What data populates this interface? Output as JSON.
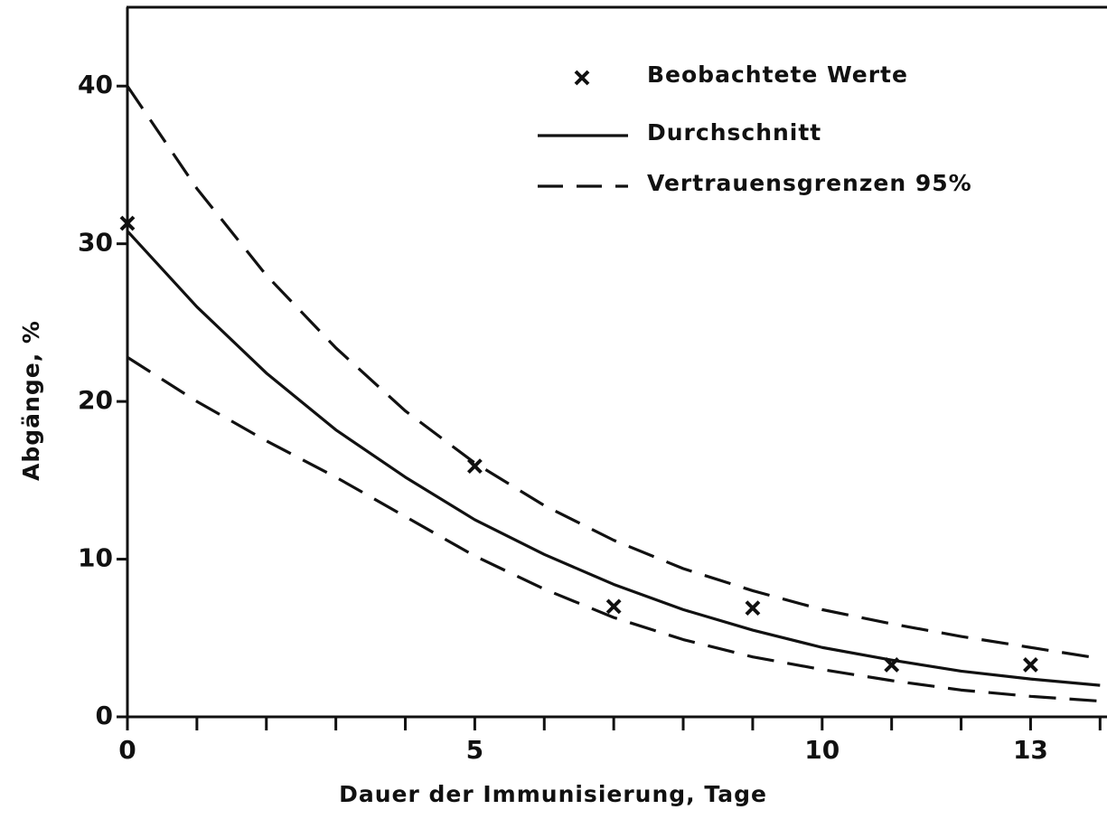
{
  "chart_data": {
    "type": "line",
    "x_label": "Dauer der Immunisierung, Tage",
    "y_label": "Abgänge, %",
    "x": [
      0,
      1,
      2,
      3,
      4,
      5,
      6,
      7,
      8,
      9,
      10,
      11,
      12,
      13,
      14
    ],
    "series": [
      {
        "name": "Beobachtete Werte",
        "style": "marker",
        "color": "#111111",
        "x": [
          0,
          5,
          7,
          9,
          11,
          13
        ],
        "values": [
          31.3,
          15.9,
          7.0,
          6.9,
          3.3,
          3.3
        ]
      },
      {
        "name": "Durchschnitt",
        "style": "solid",
        "color": "#111111",
        "values": [
          30.8,
          26.0,
          21.8,
          18.2,
          15.2,
          12.5,
          10.3,
          8.4,
          6.8,
          5.5,
          4.4,
          3.6,
          2.9,
          2.4,
          2.0
        ]
      },
      {
        "name": "Vertrauensgrenzen 95%",
        "style": "dashed",
        "color": "#111111",
        "values": [
          40.0,
          33.5,
          28.0,
          23.4,
          19.4,
          16.1,
          13.4,
          11.2,
          9.4,
          8.0,
          6.8,
          5.9,
          5.1,
          4.4,
          3.7
        ],
        "lower": [
          22.8,
          20.0,
          17.5,
          15.2,
          12.7,
          10.2,
          8.1,
          6.3,
          4.9,
          3.8,
          3.0,
          2.3,
          1.7,
          1.3,
          1.0
        ]
      }
    ],
    "xlim": [
      0,
      14.1
    ],
    "ylim": [
      0,
      45
    ],
    "xticks": [
      0,
      5,
      10,
      13
    ],
    "xminor_ticks": [
      1,
      2,
      3,
      4,
      6,
      7,
      8,
      9,
      11,
      12,
      14
    ],
    "yticks": [
      0,
      10,
      20,
      30,
      40
    ],
    "grid": false
  }
}
